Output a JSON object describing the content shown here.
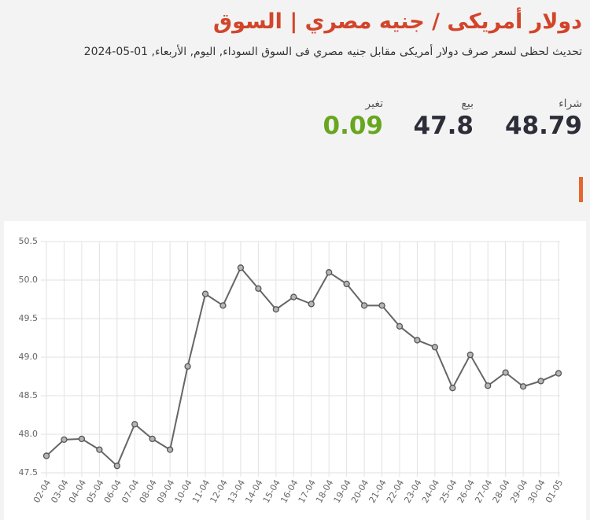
{
  "header": {
    "title": "دولار أمريكى / جنيه مصري | السوق",
    "subtitle": "تحديث لحظى لسعر صرف دولار أمريكى مقابل جنيه مصري فى السوق السوداء, اليوم, الأربعاء, 01-05-2024"
  },
  "prices": [
    {
      "label": "شراء",
      "value": 48.79
    },
    {
      "label": "بيع",
      "value": 47.8
    },
    {
      "label": "تغير",
      "value": 0.09
    }
  ],
  "chart_data": {
    "type": "line",
    "color": "#666666",
    "grid": true,
    "categories": [
      "02-04",
      "03-04",
      "04-04",
      "05-04",
      "06-04",
      "07-04",
      "08-04",
      "09-04",
      "10-04",
      "11-04",
      "12-04",
      "13-04",
      "14-04",
      "15-04",
      "16-04",
      "17-04",
      "18-04",
      "19-04",
      "20-04",
      "21-04",
      "22-04",
      "23-04",
      "24-04",
      "25-04",
      "26-04",
      "27-04",
      "28-04",
      "29-04",
      "30-04",
      "01-05"
    ],
    "values": [
      47.72,
      47.93,
      47.94,
      47.8,
      47.59,
      48.13,
      47.94,
      47.8,
      48.88,
      49.82,
      49.67,
      50.16,
      49.89,
      49.62,
      49.78,
      49.69,
      50.1,
      49.95,
      49.67,
      49.67,
      49.4,
      49.22,
      49.13,
      48.6,
      49.03,
      48.63,
      48.8,
      48.62,
      48.69,
      48.79
    ],
    "ylim": [
      47.5,
      50.5
    ],
    "yticks": [
      47.5,
      {
        "value": 48,
        "label": "48.0"
      },
      48.5,
      {
        "value": 49,
        "label": "49.0"
      },
      49.5,
      {
        "value": 50,
        "label": "50.0"
      },
      50.5
    ]
  }
}
